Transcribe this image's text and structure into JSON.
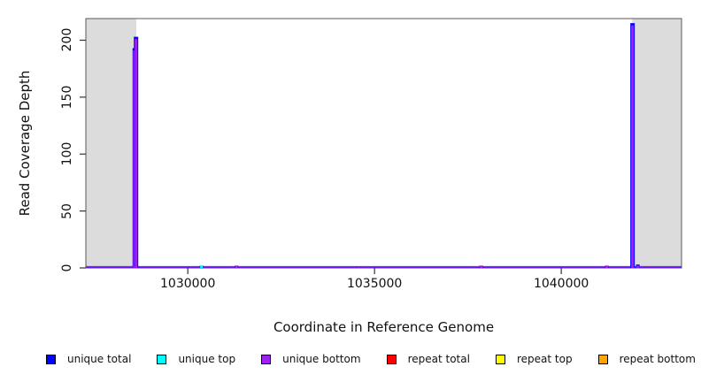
{
  "chart_data": {
    "type": "line",
    "title": "",
    "xlabel": "Coordinate in Reference Genome",
    "ylabel": "Read Coverage Depth",
    "xlim": [
      1027270,
      1043220
    ],
    "ylim": [
      0,
      219
    ],
    "grid": false,
    "legend_position": "bottom",
    "x_ticks": [
      {
        "value": 1030000,
        "label": "1030000"
      },
      {
        "value": 1035000,
        "label": "1035000"
      },
      {
        "value": 1040000,
        "label": "1040000"
      }
    ],
    "y_ticks": [
      {
        "value": 0,
        "label": "0"
      },
      {
        "value": 50,
        "label": "50"
      },
      {
        "value": 100,
        "label": "100"
      },
      {
        "value": 150,
        "label": "150"
      },
      {
        "value": 200,
        "label": "200"
      }
    ],
    "masked_region_color": "#DCDCDC",
    "masked_regions": [
      [
        1027270,
        1028620
      ],
      [
        1041900,
        1043220
      ]
    ],
    "series": [
      {
        "name": "unique total",
        "color": "#0000FF",
        "baseline": true,
        "spikes": [
          {
            "x": 1028550,
            "depth": 193,
            "w": 2.5
          },
          {
            "x": 1028614,
            "depth": 203
          },
          {
            "x": 1030367,
            "depth": 2
          },
          {
            "x": 1031304,
            "depth": 2
          },
          {
            "x": 1034573,
            "depth": 1
          },
          {
            "x": 1037856,
            "depth": 2
          },
          {
            "x": 1041220,
            "depth": 2
          },
          {
            "x": 1041908,
            "depth": 215
          },
          {
            "x": 1042050,
            "depth": 3
          }
        ]
      },
      {
        "name": "unique top",
        "color": "#00FFFF",
        "baseline": false,
        "spikes": [
          {
            "x": 1030367,
            "depth": 2
          }
        ]
      },
      {
        "name": "unique bottom",
        "color": "#A020F0",
        "baseline": true,
        "spikes": [
          {
            "x": 1028550,
            "depth": 191,
            "w": 1.5
          },
          {
            "x": 1028614,
            "depth": 201
          },
          {
            "x": 1031304,
            "depth": 2
          },
          {
            "x": 1034573,
            "depth": 1
          },
          {
            "x": 1037856,
            "depth": 2
          },
          {
            "x": 1041220,
            "depth": 2
          },
          {
            "x": 1041908,
            "depth": 213
          },
          {
            "x": 1042050,
            "depth": 2
          }
        ]
      },
      {
        "name": "repeat total",
        "color": "#FF0000",
        "baseline": false,
        "spikes": []
      },
      {
        "name": "repeat top",
        "color": "#FFFF00",
        "baseline": false,
        "spikes": []
      },
      {
        "name": "repeat bottom",
        "color": "#FFA500",
        "baseline": false,
        "spikes": []
      }
    ]
  },
  "legend": {
    "items": [
      {
        "label": "unique total",
        "color": "#0000FF"
      },
      {
        "label": "unique top",
        "color": "#00FFFF"
      },
      {
        "label": "unique bottom",
        "color": "#A020F0"
      },
      {
        "label": "repeat total",
        "color": "#FF0000"
      },
      {
        "label": "repeat top",
        "color": "#FFFF00"
      },
      {
        "label": "repeat bottom",
        "color": "#FFA500"
      }
    ]
  }
}
